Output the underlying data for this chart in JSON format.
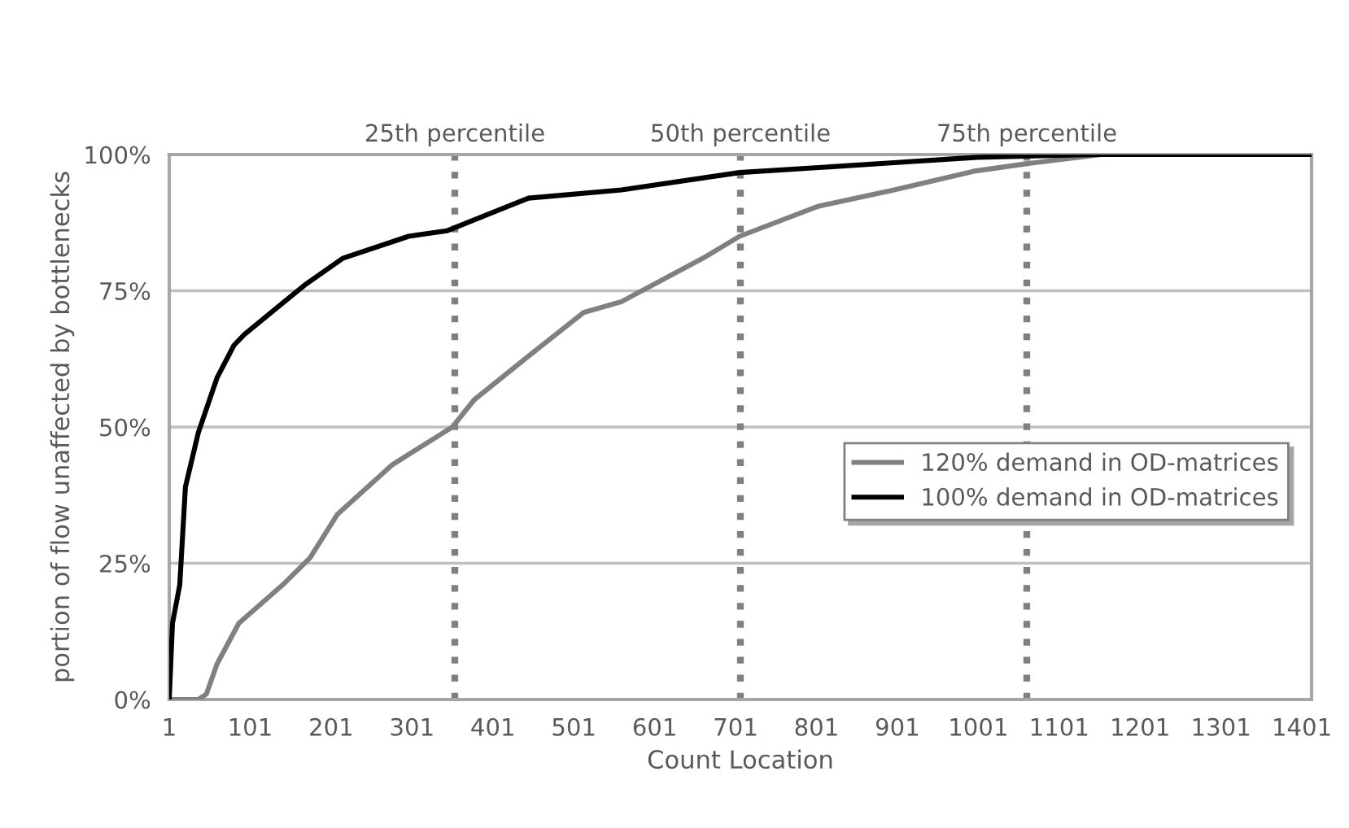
{
  "chart_data": {
    "type": "line",
    "xlabel": "Count Location",
    "ylabel": "portion of flow unaffected by bottlenecks",
    "xlim": [
      1,
      1413
    ],
    "xticks": [
      1,
      101,
      201,
      301,
      401,
      501,
      601,
      701,
      801,
      901,
      1001,
      1101,
      1201,
      1301,
      1401
    ],
    "ylim": [
      0,
      100
    ],
    "yticks": [
      {
        "value": 0,
        "label": "0%"
      },
      {
        "value": 25,
        "label": "25%"
      },
      {
        "value": 50,
        "label": "50%"
      },
      {
        "value": 75,
        "label": "75%"
      },
      {
        "value": 100,
        "label": "100%"
      }
    ],
    "grid": "y",
    "legend": "right",
    "marker": "none",
    "line_style": "solid",
    "series": [
      {
        "name": "120% demand in OD-matrices",
        "color": "#808080",
        "x": [
          1,
          37,
          47,
          60,
          87,
          141,
          175,
          209,
          276,
          351,
          378,
          445,
          513,
          560,
          661,
          706,
          803,
          897,
          998,
          1060,
          1153,
          1413
        ],
        "values": [
          0,
          0,
          1,
          6.5,
          14,
          21,
          26,
          34,
          43,
          50,
          55,
          63,
          71,
          73,
          81,
          85,
          90.5,
          93.5,
          97,
          98.3,
          100,
          100
        ]
      },
      {
        "name": "100% demand in OD-matrices",
        "color": "#000000",
        "x": [
          1,
          5,
          14,
          21,
          37,
          60,
          81,
          94,
          135,
          168,
          216,
          297,
          344,
          445,
          560,
          706,
          897,
          1000,
          1150,
          1413
        ],
        "values": [
          0,
          14,
          21,
          39,
          49,
          59,
          65,
          67,
          72,
          76,
          81,
          85,
          86,
          92,
          93.5,
          96.7,
          98.5,
          99.5,
          100,
          100
        ]
      }
    ],
    "ref_lines": [
      {
        "axis": "x",
        "value": 354,
        "label": "25th percentile",
        "color": "#808080",
        "line_style": "dotted"
      },
      {
        "axis": "x",
        "value": 707,
        "label": "50th percentile",
        "color": "#808080",
        "line_style": "dotted"
      },
      {
        "axis": "x",
        "value": 1061,
        "label": "75th percentile",
        "color": "#808080",
        "line_style": "dotted"
      }
    ]
  }
}
